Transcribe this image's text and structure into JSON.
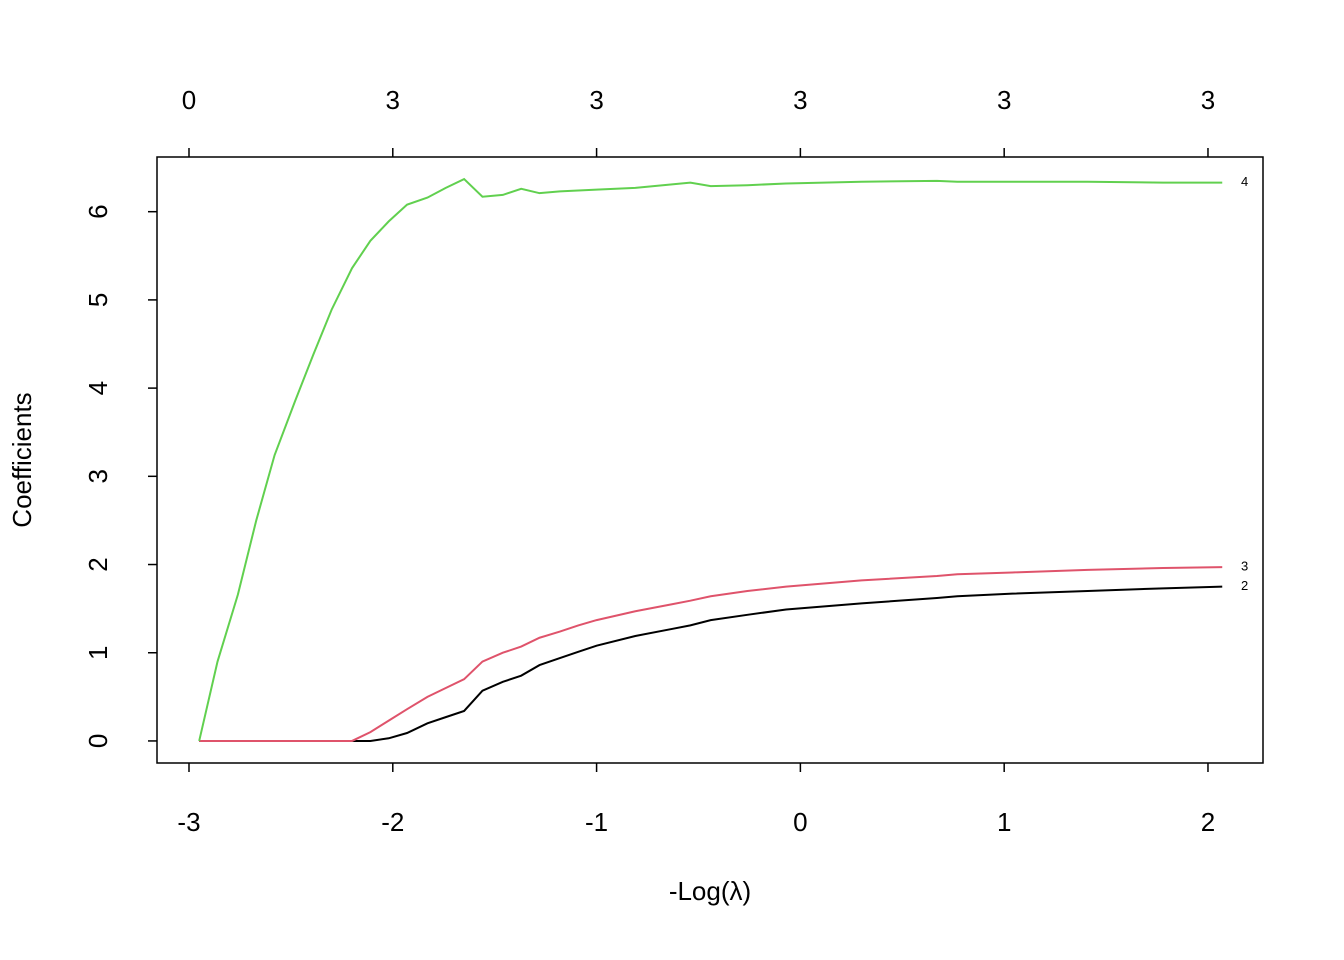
{
  "chart_data": {
    "type": "line",
    "xlabel": "-Log(λ)",
    "ylabel": "Coefficients",
    "x": [
      -2.95,
      -2.86,
      -2.76,
      -2.67,
      -2.58,
      -2.48,
      -2.39,
      -2.3,
      -2.2,
      -2.11,
      -2.02,
      -1.93,
      -1.83,
      -1.74,
      -1.65,
      -1.56,
      -1.46,
      -1.37,
      -1.28,
      -1.18,
      -1.09,
      -1.0,
      -0.81,
      -0.63,
      -0.54,
      -0.44,
      -0.26,
      -0.07,
      0.3,
      0.67,
      0.77,
      1.04,
      1.41,
      1.78,
      2.07
    ],
    "series": [
      {
        "name": "2",
        "color": "#000000",
        "values": [
          0,
          0,
          0,
          0,
          0,
          0,
          0,
          0,
          0,
          0,
          0.03,
          0.09,
          0.2,
          0.27,
          0.34,
          0.57,
          0.67,
          0.74,
          0.86,
          0.94,
          1.01,
          1.08,
          1.19,
          1.27,
          1.31,
          1.37,
          1.43,
          1.49,
          1.56,
          1.62,
          1.64,
          1.67,
          1.7,
          1.73,
          1.75
        ]
      },
      {
        "name": "3",
        "color": "#DF536B",
        "values": [
          0,
          0,
          0,
          0,
          0,
          0,
          0,
          0,
          0,
          0.1,
          0.23,
          0.36,
          0.5,
          0.6,
          0.7,
          0.9,
          1.0,
          1.07,
          1.17,
          1.24,
          1.31,
          1.37,
          1.47,
          1.55,
          1.59,
          1.64,
          1.7,
          1.75,
          1.82,
          1.87,
          1.89,
          1.91,
          1.94,
          1.96,
          1.97
        ]
      },
      {
        "name": "4",
        "color": "#61D04F",
        "values": [
          0,
          0.9,
          1.66,
          2.5,
          3.24,
          3.85,
          4.38,
          4.89,
          5.36,
          5.67,
          5.89,
          6.08,
          6.16,
          6.27,
          6.37,
          6.17,
          6.19,
          6.26,
          6.21,
          6.23,
          6.24,
          6.25,
          6.27,
          6.31,
          6.33,
          6.29,
          6.3,
          6.32,
          6.34,
          6.35,
          6.34,
          6.34,
          6.34,
          6.33,
          6.33
        ]
      }
    ],
    "xlim": [
      -3.157,
      2.27
    ],
    "ylim": [
      -0.25,
      6.62
    ],
    "xticks": [
      -3,
      -2,
      -1,
      0,
      1,
      2
    ],
    "yticks": [
      0,
      1,
      2,
      3,
      4,
      5,
      6
    ],
    "x2ticks": [
      {
        "value": -3,
        "label": "0"
      },
      {
        "value": -2,
        "label": "3"
      },
      {
        "value": -1,
        "label": "3"
      },
      {
        "value": 0,
        "label": "3"
      },
      {
        "value": 1,
        "label": "3"
      },
      {
        "value": 2,
        "label": "3"
      }
    ]
  }
}
